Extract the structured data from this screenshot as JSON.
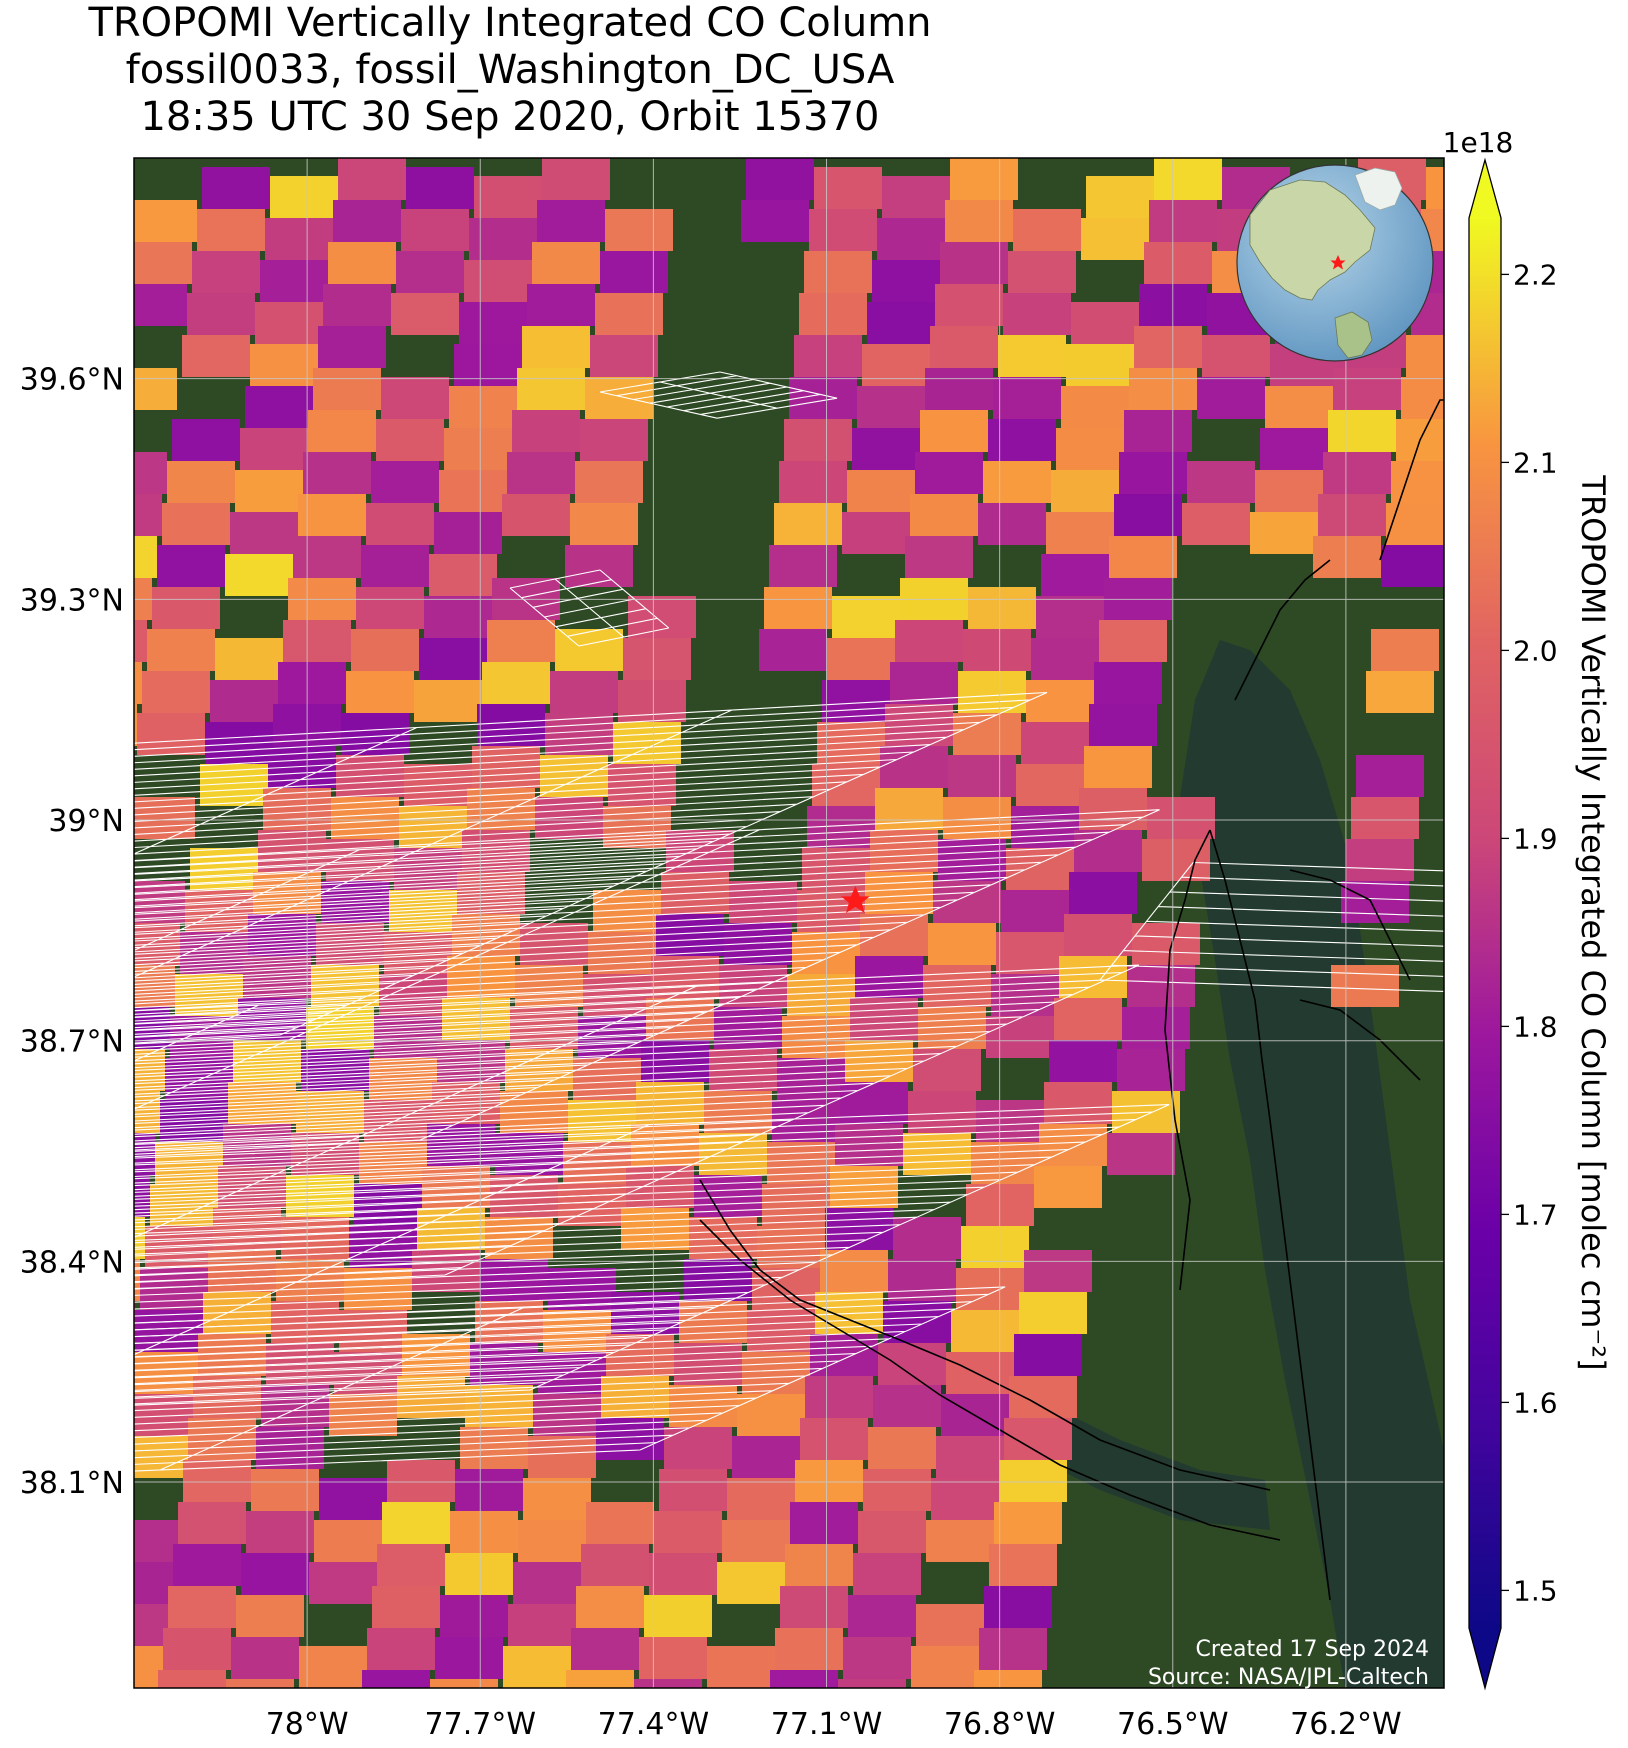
{
  "title": {
    "line1": "TROPOMI Vertically Integrated CO Column",
    "line2": "fossil0033, fossil_Washington_DC_USA",
    "line3": "18:35 UTC 30 Sep 2020, Orbit 15370"
  },
  "map": {
    "lon_range": [
      -78.3,
      -76.03
    ],
    "lat_range": [
      37.82,
      39.9
    ],
    "lat_ticks": [
      {
        "value": 39.6,
        "label": "39.6°N"
      },
      {
        "value": 39.3,
        "label": "39.3°N"
      },
      {
        "value": 39.0,
        "label": "39°N"
      },
      {
        "value": 38.7,
        "label": "38.7°N"
      },
      {
        "value": 38.4,
        "label": "38.4°N"
      },
      {
        "value": 38.1,
        "label": "38.1°N"
      }
    ],
    "lon_ticks": [
      {
        "value": -78.0,
        "label": "78°W"
      },
      {
        "value": -77.7,
        "label": "77.7°W"
      },
      {
        "value": -77.4,
        "label": "77.4°W"
      },
      {
        "value": -77.1,
        "label": "77.1°W"
      },
      {
        "value": -76.8,
        "label": "76.8°W"
      },
      {
        "value": -76.5,
        "label": "76.5°W"
      },
      {
        "value": -76.2,
        "label": "76.2°W"
      }
    ],
    "site_marker": {
      "lon": -77.05,
      "lat": 38.89,
      "color": "#ff1a1a"
    },
    "inset_globe": {
      "marker_color": "#ff1a1a"
    },
    "colors": {
      "vegetation": "#2e4a24",
      "water": "#223a30",
      "grid": "#c8c8c8",
      "target_footprints": "#ffffff",
      "site_marker": "#ff1a1a"
    }
  },
  "colorbar": {
    "exponent_label": "1e18",
    "range": [
      1.48,
      2.23
    ],
    "ticks": [
      {
        "value": 1.5,
        "label": "1.5"
      },
      {
        "value": 1.6,
        "label": "1.6"
      },
      {
        "value": 1.7,
        "label": "1.7"
      },
      {
        "value": 1.8,
        "label": "1.8"
      },
      {
        "value": 1.9,
        "label": "1.9"
      },
      {
        "value": 2.0,
        "label": "2.0"
      },
      {
        "value": 2.1,
        "label": "2.1"
      },
      {
        "value": 2.2,
        "label": "2.2"
      }
    ],
    "label": "TROPOMI Vertically Integrated CO Column [molec cm⁻²]",
    "colormap": "plasma"
  },
  "footer": {
    "created": "Created 17 Sep 2024",
    "source": "Source: NASA/JPL-Caltech"
  }
}
